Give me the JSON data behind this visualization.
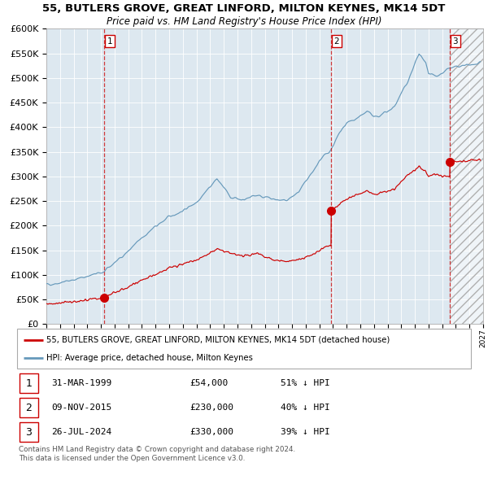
{
  "title": "55, BUTLERS GROVE, GREAT LINFORD, MILTON KEYNES, MK14 5DT",
  "subtitle": "Price paid vs. HM Land Registry's House Price Index (HPI)",
  "legend_red": "55, BUTLERS GROVE, GREAT LINFORD, MILTON KEYNES, MK14 5DT (detached house)",
  "legend_blue": "HPI: Average price, detached house, Milton Keynes",
  "transactions": [
    {
      "num": 1,
      "date": "31-MAR-1999",
      "price": 54000,
      "pct": "51% ↓ HPI"
    },
    {
      "num": 2,
      "date": "09-NOV-2015",
      "price": 230000,
      "pct": "40% ↓ HPI"
    },
    {
      "num": 3,
      "date": "26-JUL-2024",
      "price": 330000,
      "pct": "39% ↓ HPI"
    }
  ],
  "transaction_dates_decimal": [
    1999.25,
    2015.86,
    2024.57
  ],
  "transaction_prices": [
    54000,
    230000,
    330000
  ],
  "footer": "Contains HM Land Registry data © Crown copyright and database right 2024.\nThis data is licensed under the Open Government Licence v3.0.",
  "ylim": [
    0,
    600000
  ],
  "xlim_start": 1995.0,
  "xlim_end": 2027.0,
  "plot_bg": "#dde8f0",
  "red_line_color": "#cc0000",
  "blue_line_color": "#6699bb",
  "grid_color": "#ffffff",
  "hpi_anchors": [
    [
      1995.0,
      80000
    ],
    [
      1996.0,
      84000
    ],
    [
      1997.0,
      90000
    ],
    [
      1998.0,
      97000
    ],
    [
      1999.25,
      106000
    ],
    [
      2000.0,
      125000
    ],
    [
      2001.0,
      148000
    ],
    [
      2002.0,
      175000
    ],
    [
      2003.0,
      198000
    ],
    [
      2004.0,
      218000
    ],
    [
      2005.0,
      230000
    ],
    [
      2006.0,
      248000
    ],
    [
      2007.5,
      295000
    ],
    [
      2008.5,
      258000
    ],
    [
      2009.5,
      252000
    ],
    [
      2010.0,
      260000
    ],
    [
      2010.5,
      262000
    ],
    [
      2011.5,
      254000
    ],
    [
      2012.5,
      250000
    ],
    [
      2013.0,
      258000
    ],
    [
      2013.5,
      268000
    ],
    [
      2014.5,
      308000
    ],
    [
      2015.0,
      332000
    ],
    [
      2015.86,
      355000
    ],
    [
      2016.5,
      388000
    ],
    [
      2017.0,
      408000
    ],
    [
      2018.0,
      422000
    ],
    [
      2018.5,
      432000
    ],
    [
      2019.0,
      420000
    ],
    [
      2019.5,
      424000
    ],
    [
      2020.5,
      442000
    ],
    [
      2021.5,
      494000
    ],
    [
      2022.3,
      550000
    ],
    [
      2022.8,
      530000
    ],
    [
      2023.0,
      510000
    ],
    [
      2023.5,
      505000
    ],
    [
      2024.0,
      510000
    ],
    [
      2024.57,
      520000
    ],
    [
      2025.5,
      524000
    ],
    [
      2026.5,
      528000
    ]
  ],
  "red_anchors": [
    [
      1995.0,
      41000
    ],
    [
      1996.0,
      43000
    ],
    [
      1997.0,
      45000
    ],
    [
      1998.0,
      49000
    ],
    [
      1999.0,
      52000
    ],
    [
      1999.25,
      54000
    ],
    [
      2000.0,
      65000
    ],
    [
      2001.0,
      75000
    ],
    [
      2002.0,
      90000
    ],
    [
      2003.0,
      100000
    ],
    [
      2004.0,
      114000
    ],
    [
      2005.0,
      122000
    ],
    [
      2006.0,
      130000
    ],
    [
      2007.5,
      152000
    ],
    [
      2008.5,
      144000
    ],
    [
      2009.5,
      138000
    ],
    [
      2010.5,
      144000
    ],
    [
      2011.5,
      130000
    ],
    [
      2012.5,
      127000
    ],
    [
      2013.5,
      132000
    ],
    [
      2014.5,
      140000
    ],
    [
      2015.5,
      158000
    ],
    [
      2015.859,
      160000
    ],
    [
      2015.861,
      230000
    ],
    [
      2016.5,
      244000
    ],
    [
      2017.0,
      254000
    ],
    [
      2017.5,
      260000
    ],
    [
      2018.0,
      264000
    ],
    [
      2018.5,
      270000
    ],
    [
      2019.0,
      263000
    ],
    [
      2019.5,
      266000
    ],
    [
      2020.5,
      274000
    ],
    [
      2021.5,
      304000
    ],
    [
      2022.3,
      320000
    ],
    [
      2022.8,
      310000
    ],
    [
      2023.0,
      300000
    ],
    [
      2023.5,
      304000
    ],
    [
      2024.0,
      300000
    ],
    [
      2024.569,
      300000
    ],
    [
      2024.571,
      330000
    ],
    [
      2025.0,
      330000
    ],
    [
      2026.5,
      334000
    ]
  ]
}
